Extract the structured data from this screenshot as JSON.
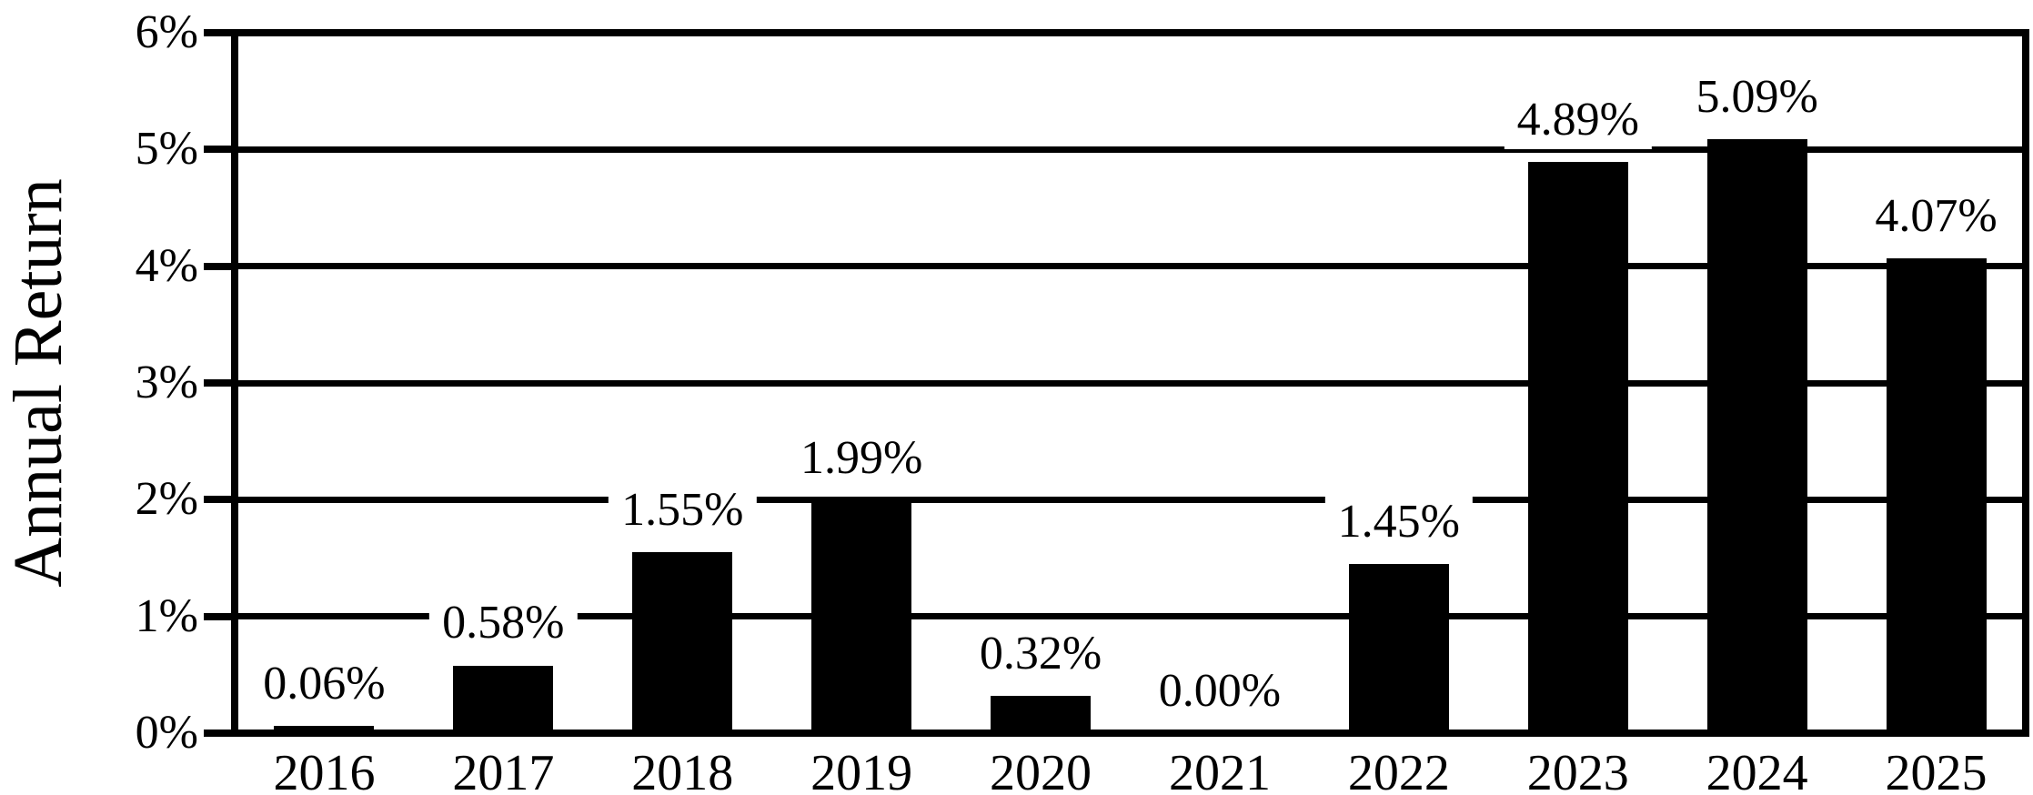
{
  "chart_data": {
    "type": "bar",
    "title": "",
    "categories": [
      "2016",
      "2017",
      "2018",
      "2019",
      "2020",
      "2021",
      "2022",
      "2023",
      "2024",
      "2025"
    ],
    "values": [
      0.06,
      0.58,
      1.55,
      1.99,
      0.32,
      0.0,
      1.45,
      4.89,
      5.09,
      4.07
    ],
    "value_labels": [
      "0.06%",
      "0.58%",
      "1.55%",
      "1.99%",
      "0.32%",
      "0.00%",
      "1.45%",
      "4.89%",
      "5.09%",
      "4.07%"
    ],
    "xlabel": "",
    "ylabel": "Annual Return",
    "ylim": [
      0,
      6
    ],
    "ytick_values": [
      0,
      1,
      2,
      3,
      4,
      5,
      6
    ],
    "ytick_labels": [
      "0%",
      "1%",
      "2%",
      "3%",
      "4%",
      "5%",
      "6%"
    ],
    "grid": "horizontal",
    "legend": "none",
    "bar_color": "#000000",
    "background_color": "#ffffff",
    "text_color": "#000000"
  }
}
